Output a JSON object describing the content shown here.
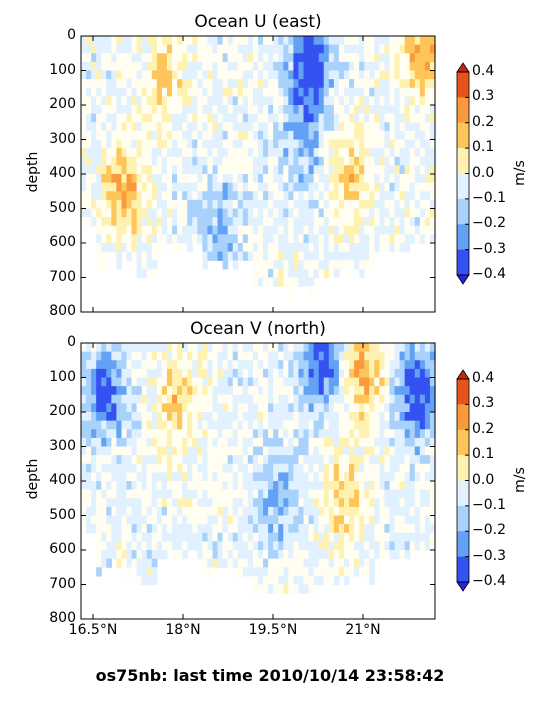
{
  "footer": "os75nb: last time 2010/10/14 23:58:42",
  "colorbar": {
    "label": "m/s",
    "ticks": [
      "0.4",
      "0.3",
      "0.2",
      "0.1",
      "0.0",
      "−0.1",
      "−0.2",
      "−0.3",
      "−0.4"
    ],
    "colors": [
      "#e8531c",
      "#fb9a3b",
      "#fdc55a",
      "#fff2b0",
      "#fffef0",
      "#e2f1ff",
      "#a8d2fb",
      "#62a1f4",
      "#3452f0"
    ]
  },
  "chart_data": [
    {
      "type": "heatmap",
      "title": "Ocean U (east)",
      "xlabel": "",
      "ylabel": "depth",
      "units": "m/s",
      "ylim": [
        800,
        0
      ],
      "xlim": [
        16.3,
        22.2
      ],
      "yticks": [
        0,
        100,
        200,
        300,
        400,
        500,
        600,
        700,
        800
      ],
      "xticks": [
        16.5,
        18,
        19.5,
        21
      ],
      "xtick_labels": [],
      "color_levels": [
        -0.4,
        -0.3,
        -0.2,
        -0.1,
        0.0,
        0.1,
        0.2,
        0.3,
        0.4
      ],
      "features": [
        {
          "x": 17.0,
          "depth": 450,
          "value": 0.3
        },
        {
          "x": 17.7,
          "depth": 120,
          "value": 0.2
        },
        {
          "x": 18.6,
          "depth": 550,
          "value": -0.2
        },
        {
          "x": 20.1,
          "depth": 80,
          "value": -0.4
        },
        {
          "x": 20.0,
          "depth": 300,
          "value": -0.2
        },
        {
          "x": 20.8,
          "depth": 400,
          "value": 0.2
        },
        {
          "x": 22.0,
          "depth": 30,
          "value": 0.3
        }
      ]
    },
    {
      "type": "heatmap",
      "title": "Ocean V (north)",
      "xlabel": "",
      "ylabel": "depth",
      "units": "m/s",
      "ylim": [
        800,
        0
      ],
      "xlim": [
        16.3,
        22.2
      ],
      "yticks": [
        0,
        100,
        200,
        300,
        400,
        500,
        600,
        700,
        800
      ],
      "xticks": [
        16.5,
        18,
        19.5,
        21
      ],
      "xtick_labels": [
        "16.5°N",
        "18°N",
        "19.5°N",
        "21°N"
      ],
      "color_levels": [
        -0.4,
        -0.3,
        -0.2,
        -0.1,
        0.0,
        0.1,
        0.2,
        0.3,
        0.4
      ],
      "features": [
        {
          "x": 20.3,
          "depth": 50,
          "value": -0.4
        },
        {
          "x": 21.0,
          "depth": 80,
          "value": 0.3
        },
        {
          "x": 21.9,
          "depth": 150,
          "value": -0.4
        },
        {
          "x": 16.7,
          "depth": 150,
          "value": -0.3
        },
        {
          "x": 19.6,
          "depth": 450,
          "value": -0.2
        },
        {
          "x": 17.9,
          "depth": 180,
          "value": 0.2
        },
        {
          "x": 20.7,
          "depth": 450,
          "value": 0.2
        }
      ]
    }
  ]
}
